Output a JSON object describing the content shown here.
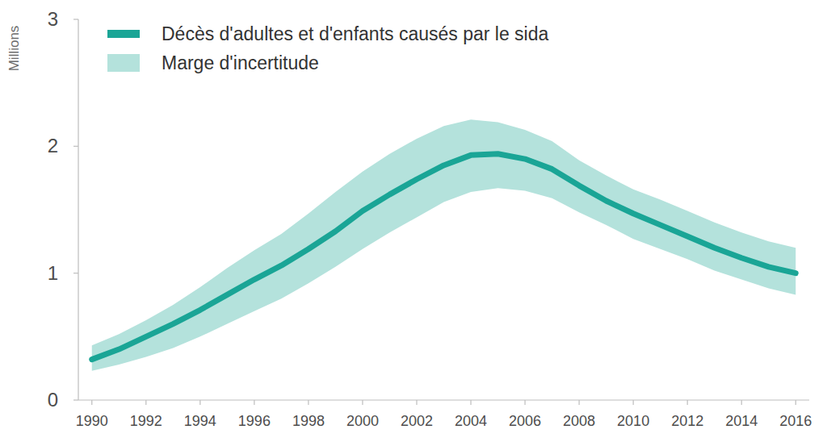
{
  "chart_data": {
    "type": "line",
    "y_label": "Millions",
    "x": [
      1990,
      1991,
      1992,
      1993,
      1994,
      1995,
      1996,
      1997,
      1998,
      1999,
      2000,
      2001,
      2002,
      2003,
      2004,
      2005,
      2006,
      2007,
      2008,
      2009,
      2010,
      2011,
      2012,
      2013,
      2014,
      2015,
      2016
    ],
    "series": [
      {
        "name": "Décès d'adultes et d'enfants causés par le sida",
        "type": "line",
        "color": "#1aa596",
        "values": [
          0.32,
          0.4,
          0.5,
          0.6,
          0.71,
          0.83,
          0.95,
          1.06,
          1.19,
          1.33,
          1.49,
          1.62,
          1.74,
          1.85,
          1.93,
          1.94,
          1.9,
          1.82,
          1.69,
          1.57,
          1.47,
          1.38,
          1.29,
          1.2,
          1.12,
          1.05,
          1.0
        ]
      },
      {
        "name": "Marge d'incertitude",
        "type": "band",
        "color": "#b4e2dc",
        "upper": [
          0.43,
          0.52,
          0.63,
          0.75,
          0.89,
          1.04,
          1.18,
          1.31,
          1.47,
          1.64,
          1.8,
          1.94,
          2.06,
          2.16,
          2.21,
          2.19,
          2.13,
          2.04,
          1.89,
          1.77,
          1.66,
          1.58,
          1.49,
          1.4,
          1.32,
          1.25,
          1.2
        ],
        "lower": [
          0.23,
          0.28,
          0.34,
          0.41,
          0.5,
          0.6,
          0.7,
          0.8,
          0.92,
          1.05,
          1.19,
          1.32,
          1.44,
          1.56,
          1.64,
          1.67,
          1.65,
          1.59,
          1.48,
          1.38,
          1.27,
          1.19,
          1.11,
          1.02,
          0.95,
          0.88,
          0.83
        ]
      }
    ],
    "xlim": [
      1989.5,
      2016.5
    ],
    "xticks": [
      1990,
      1992,
      1994,
      1996,
      1998,
      2000,
      2002,
      2004,
      2006,
      2008,
      2010,
      2012,
      2014,
      2016
    ],
    "ylim": [
      0,
      3
    ],
    "yticks": [
      0,
      1,
      2,
      3
    ],
    "grid": false,
    "legend": "top-left"
  }
}
